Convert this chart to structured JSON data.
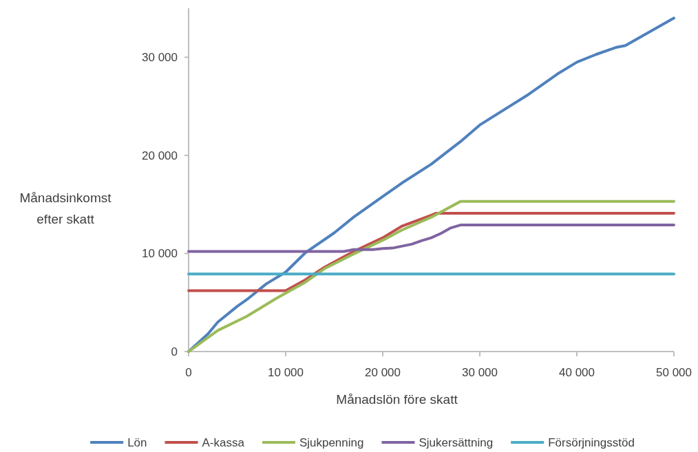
{
  "chart_data": {
    "type": "line",
    "xlabel": "Månadslön före skatt",
    "ylabel": "Månadsinkomst efter skatt",
    "xlim": [
      0,
      50000
    ],
    "ylim": [
      0,
      35000
    ],
    "xticks": [
      0,
      {
        "value": 10000,
        "label": "10 000"
      },
      {
        "value": 20000,
        "label": "20 000"
      },
      {
        "value": 30000,
        "label": "30 000"
      },
      {
        "value": 40000,
        "label": "40 000"
      },
      {
        "value": 50000,
        "label": "50 000"
      }
    ],
    "yticks": [
      0,
      {
        "value": 10000,
        "label": "10 000"
      },
      {
        "value": 20000,
        "label": "20 000"
      },
      {
        "value": 30000,
        "label": "30 000"
      }
    ],
    "grid": false,
    "legend": "bottom",
    "marker": "none",
    "line_style": "solid",
    "series": [
      {
        "name": "Lön",
        "color": "#4f81bd",
        "x": [
          0,
          2000,
          3000,
          5000,
          6000,
          8000,
          10000,
          12000,
          15000,
          17000,
          20000,
          22000,
          25000,
          28000,
          30000,
          35000,
          38000,
          40000,
          42000,
          44000,
          45000,
          50000
        ],
        "values": [
          0,
          1800,
          3000,
          4600,
          5300,
          6900,
          8100,
          10050,
          12100,
          13700,
          15800,
          17200,
          19100,
          21400,
          23100,
          26200,
          28300,
          29500,
          30300,
          31000,
          31200,
          34000
        ]
      },
      {
        "name": "A-kassa",
        "color": "#c0504d",
        "x": [
          0,
          10000,
          12000,
          14000,
          17000,
          20000,
          22000,
          25000,
          25500,
          50000
        ],
        "values": [
          6200,
          6200,
          7300,
          8600,
          10200,
          11600,
          12800,
          13900,
          14100,
          14100
        ]
      },
      {
        "name": "Sjukpenning",
        "color": "#9bbb59",
        "x": [
          0,
          3000,
          6000,
          9000,
          11000,
          12000,
          14000,
          17000,
          20000,
          22000,
          25000,
          28000,
          50000
        ],
        "values": [
          0,
          2150,
          3600,
          5400,
          6500,
          7050,
          8450,
          9950,
          11350,
          12400,
          13700,
          15300,
          15300
        ]
      },
      {
        "name": "Sjukersättning",
        "color": "#8064a2",
        "x": [
          0,
          16000,
          17000,
          19000,
          20000,
          21000,
          23000,
          24000,
          25000,
          26000,
          27000,
          28000,
          50000
        ],
        "values": [
          10200,
          10200,
          10400,
          10400,
          10500,
          10550,
          10950,
          11300,
          11600,
          12050,
          12600,
          12900,
          12900
        ]
      },
      {
        "name": "Försörjningsstöd",
        "color": "#4bacc6",
        "x": [
          0,
          50000
        ],
        "values": [
          7900,
          7900
        ]
      }
    ]
  }
}
